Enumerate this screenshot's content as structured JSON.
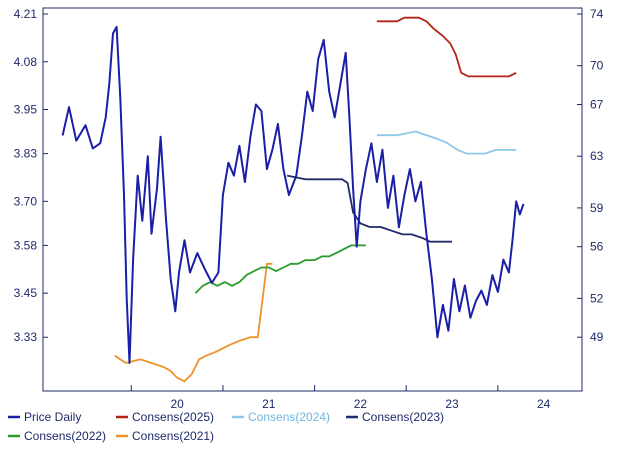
{
  "chart_data": {
    "type": "line",
    "title": "",
    "xlabel": "",
    "ylabel_left": "",
    "ylabel_right": "",
    "grid": false,
    "legend_position": "bottom",
    "x_ticks": [
      "20",
      "21",
      "22",
      "23",
      "24"
    ],
    "x_range": [
      2019.2,
      2024.7
    ],
    "left_axis": {
      "ticks": [
        "4.21",
        "4.08",
        "3.95",
        "3.83",
        "3.70",
        "3.58",
        "3.45",
        "3.33"
      ],
      "range": [
        3.2,
        4.21
      ]
    },
    "right_axis": {
      "ticks": [
        "74",
        "70",
        "67",
        "63",
        "59",
        "56",
        "52",
        "49"
      ],
      "range": [
        45.3,
        74
      ]
    },
    "series": [
      {
        "name": "Price Daily",
        "axis": "right",
        "color": "#1a1fa6",
        "points": [
          [
            2019.25,
            64.6
          ],
          [
            2019.32,
            66.8
          ],
          [
            2019.4,
            64.2
          ],
          [
            2019.5,
            65.4
          ],
          [
            2019.58,
            63.6
          ],
          [
            2019.66,
            64.0
          ],
          [
            2019.72,
            66.0
          ],
          [
            2019.76,
            68.6
          ],
          [
            2019.8,
            72.5
          ],
          [
            2019.84,
            73.0
          ],
          [
            2019.88,
            67.5
          ],
          [
            2019.92,
            60.0
          ],
          [
            2019.95,
            52.0
          ],
          [
            2019.98,
            47.0
          ],
          [
            2020.02,
            55.0
          ],
          [
            2020.07,
            61.5
          ],
          [
            2020.12,
            58.0
          ],
          [
            2020.18,
            63.0
          ],
          [
            2020.22,
            57.0
          ],
          [
            2020.28,
            60.5
          ],
          [
            2020.32,
            64.5
          ],
          [
            2020.38,
            58.0
          ],
          [
            2020.43,
            53.5
          ],
          [
            2020.48,
            51.0
          ],
          [
            2020.52,
            54.0
          ],
          [
            2020.58,
            56.5
          ],
          [
            2020.64,
            54.0
          ],
          [
            2020.72,
            55.5
          ],
          [
            2020.8,
            54.3
          ],
          [
            2020.88,
            53.2
          ],
          [
            2020.95,
            54.0
          ],
          [
            2021.0,
            60.0
          ],
          [
            2021.06,
            62.5
          ],
          [
            2021.12,
            61.5
          ],
          [
            2021.18,
            63.8
          ],
          [
            2021.24,
            61.0
          ],
          [
            2021.3,
            64.5
          ],
          [
            2021.36,
            67.0
          ],
          [
            2021.42,
            66.5
          ],
          [
            2021.48,
            62.0
          ],
          [
            2021.54,
            63.5
          ],
          [
            2021.6,
            65.5
          ],
          [
            2021.66,
            62.0
          ],
          [
            2021.72,
            60.0
          ],
          [
            2021.8,
            61.5
          ],
          [
            2021.86,
            64.5
          ],
          [
            2021.92,
            68.0
          ],
          [
            2021.98,
            66.5
          ],
          [
            2022.04,
            70.5
          ],
          [
            2022.1,
            72.0
          ],
          [
            2022.16,
            68.0
          ],
          [
            2022.22,
            66.0
          ],
          [
            2022.28,
            68.5
          ],
          [
            2022.34,
            71.0
          ],
          [
            2022.38,
            66.0
          ],
          [
            2022.42,
            60.5
          ],
          [
            2022.46,
            56.0
          ],
          [
            2022.5,
            59.5
          ],
          [
            2022.56,
            62.0
          ],
          [
            2022.62,
            64.0
          ],
          [
            2022.68,
            61.0
          ],
          [
            2022.74,
            63.5
          ],
          [
            2022.8,
            59.0
          ],
          [
            2022.86,
            61.5
          ],
          [
            2022.92,
            57.5
          ],
          [
            2022.98,
            60.0
          ],
          [
            2023.04,
            62.0
          ],
          [
            2023.1,
            59.5
          ],
          [
            2023.16,
            61.0
          ],
          [
            2023.22,
            57.0
          ],
          [
            2023.28,
            53.5
          ],
          [
            2023.34,
            49.0
          ],
          [
            2023.4,
            51.5
          ],
          [
            2023.46,
            49.5
          ],
          [
            2023.52,
            53.5
          ],
          [
            2023.58,
            51.0
          ],
          [
            2023.64,
            53.0
          ],
          [
            2023.7,
            50.5
          ],
          [
            2023.76,
            51.8
          ],
          [
            2023.82,
            52.6
          ],
          [
            2023.88,
            51.5
          ],
          [
            2023.94,
            53.8
          ],
          [
            2024.0,
            52.5
          ],
          [
            2024.06,
            55.0
          ],
          [
            2024.12,
            54.0
          ],
          [
            2024.16,
            56.5
          ],
          [
            2024.2,
            59.5
          ],
          [
            2024.24,
            58.5
          ],
          [
            2024.28,
            59.3
          ]
        ]
      },
      {
        "name": "Consens(2025)",
        "axis": "left",
        "color": "#b42318",
        "points": [
          [
            2022.68,
            4.19
          ],
          [
            2022.9,
            4.19
          ],
          [
            2022.98,
            4.2
          ],
          [
            2023.06,
            4.2
          ],
          [
            2023.14,
            4.2
          ],
          [
            2023.22,
            4.19
          ],
          [
            2023.3,
            4.17
          ],
          [
            2023.4,
            4.15
          ],
          [
            2023.48,
            4.13
          ],
          [
            2023.54,
            4.1
          ],
          [
            2023.6,
            4.05
          ],
          [
            2023.68,
            4.04
          ],
          [
            2023.82,
            4.04
          ],
          [
            2024.0,
            4.04
          ],
          [
            2024.12,
            4.04
          ],
          [
            2024.2,
            4.05
          ]
        ]
      },
      {
        "name": "Consens(2024)",
        "axis": "left",
        "color": "#8ec8e8",
        "points": [
          [
            2022.68,
            3.88
          ],
          [
            2022.9,
            3.88
          ],
          [
            2023.1,
            3.89
          ],
          [
            2023.22,
            3.88
          ],
          [
            2023.34,
            3.87
          ],
          [
            2023.44,
            3.86
          ],
          [
            2023.5,
            3.85
          ],
          [
            2023.56,
            3.84
          ],
          [
            2023.66,
            3.83
          ],
          [
            2023.76,
            3.83
          ],
          [
            2023.86,
            3.83
          ],
          [
            2023.98,
            3.84
          ],
          [
            2024.1,
            3.84
          ],
          [
            2024.2,
            3.84
          ]
        ]
      },
      {
        "name": "Consens(2023)",
        "axis": "left",
        "color": "#1f2a6b",
        "points": [
          [
            2021.7,
            3.77
          ],
          [
            2021.9,
            3.76
          ],
          [
            2022.1,
            3.76
          ],
          [
            2022.3,
            3.76
          ],
          [
            2022.36,
            3.75
          ],
          [
            2022.42,
            3.67
          ],
          [
            2022.5,
            3.64
          ],
          [
            2022.6,
            3.63
          ],
          [
            2022.72,
            3.63
          ],
          [
            2022.84,
            3.62
          ],
          [
            2022.96,
            3.61
          ],
          [
            2023.06,
            3.61
          ],
          [
            2023.18,
            3.6
          ],
          [
            2023.26,
            3.59
          ],
          [
            2023.4,
            3.59
          ],
          [
            2023.5,
            3.59
          ]
        ]
      },
      {
        "name": "Consens(2022)",
        "axis": "left",
        "color": "#2b9c2b",
        "points": [
          [
            2020.7,
            3.45
          ],
          [
            2020.78,
            3.47
          ],
          [
            2020.86,
            3.48
          ],
          [
            2020.94,
            3.47
          ],
          [
            2021.02,
            3.48
          ],
          [
            2021.1,
            3.47
          ],
          [
            2021.18,
            3.48
          ],
          [
            2021.26,
            3.5
          ],
          [
            2021.34,
            3.51
          ],
          [
            2021.42,
            3.52
          ],
          [
            2021.5,
            3.52
          ],
          [
            2021.58,
            3.51
          ],
          [
            2021.66,
            3.52
          ],
          [
            2021.74,
            3.53
          ],
          [
            2021.82,
            3.53
          ],
          [
            2021.9,
            3.54
          ],
          [
            2022.0,
            3.54
          ],
          [
            2022.08,
            3.55
          ],
          [
            2022.16,
            3.55
          ],
          [
            2022.24,
            3.56
          ],
          [
            2022.32,
            3.57
          ],
          [
            2022.4,
            3.58
          ],
          [
            2022.48,
            3.58
          ],
          [
            2022.56,
            3.58
          ]
        ]
      },
      {
        "name": "Consens(2021)",
        "axis": "left",
        "color": "#f0922b",
        "points": [
          [
            2019.82,
            3.28
          ],
          [
            2019.94,
            3.26
          ],
          [
            2020.1,
            3.27
          ],
          [
            2020.22,
            3.26
          ],
          [
            2020.34,
            3.25
          ],
          [
            2020.42,
            3.24
          ],
          [
            2020.5,
            3.22
          ],
          [
            2020.58,
            3.21
          ],
          [
            2020.66,
            3.23
          ],
          [
            2020.74,
            3.27
          ],
          [
            2020.82,
            3.28
          ],
          [
            2020.92,
            3.29
          ],
          [
            2021.0,
            3.3
          ],
          [
            2021.08,
            3.31
          ],
          [
            2021.18,
            3.32
          ],
          [
            2021.3,
            3.33
          ],
          [
            2021.38,
            3.33
          ],
          [
            2021.44,
            3.45
          ],
          [
            2021.48,
            3.53
          ],
          [
            2021.54,
            3.53
          ]
        ]
      }
    ]
  },
  "legend": {
    "row1": [
      "Price Daily",
      "Consens(2025)",
      "Consens(2024)",
      "Consens(2023)"
    ],
    "row2": [
      "Consens(2022)",
      "Consens(2021)"
    ]
  }
}
